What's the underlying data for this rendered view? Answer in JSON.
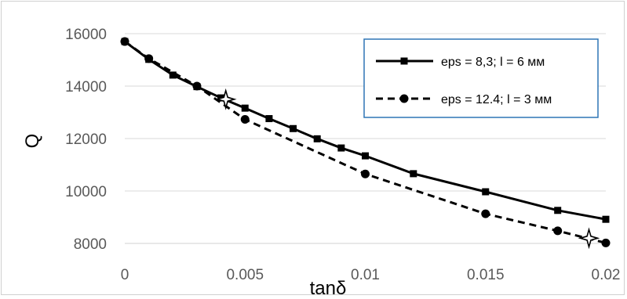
{
  "chart_data": {
    "type": "line",
    "title": "",
    "xlabel": "tanδ",
    "ylabel": "Q",
    "xlim": [
      0,
      0.02
    ],
    "ylim": [
      8000,
      16000
    ],
    "x_ticks": [
      "0",
      "0.005",
      "0.01",
      "0.015",
      "0.02"
    ],
    "y_ticks": [
      "8000",
      "10000",
      "12000",
      "14000",
      "16000"
    ],
    "grid": "horizontal",
    "legend_position": "top-right",
    "series": [
      {
        "name": "eps = 8,3;  l = 6 мм",
        "line_style": "solid",
        "marker": "square",
        "color": "#000000",
        "x": [
          0,
          0.001,
          0.002,
          0.003,
          0.004,
          0.005,
          0.006,
          0.007,
          0.008,
          0.009,
          0.01,
          0.012,
          0.015,
          0.018,
          0.02
        ],
        "y": [
          15700,
          15020,
          14420,
          13980,
          13550,
          13160,
          12760,
          12380,
          11990,
          11640,
          11340,
          10660,
          9970,
          9260,
          8920
        ]
      },
      {
        "name": "eps = 12.4;  l = 3 мм",
        "line_style": "dashed",
        "marker": "circle",
        "color": "#000000",
        "x": [
          0,
          0.001,
          0.003,
          0.005,
          0.01,
          0.015,
          0.018,
          0.02
        ],
        "y": [
          15700,
          15050,
          14000,
          12730,
          10650,
          9130,
          8480,
          8020
        ]
      }
    ],
    "annotations": [
      {
        "marker": "star-outline",
        "x": 0.0042,
        "y": 13500
      },
      {
        "marker": "star-outline",
        "x": 0.0193,
        "y": 8200
      }
    ]
  }
}
